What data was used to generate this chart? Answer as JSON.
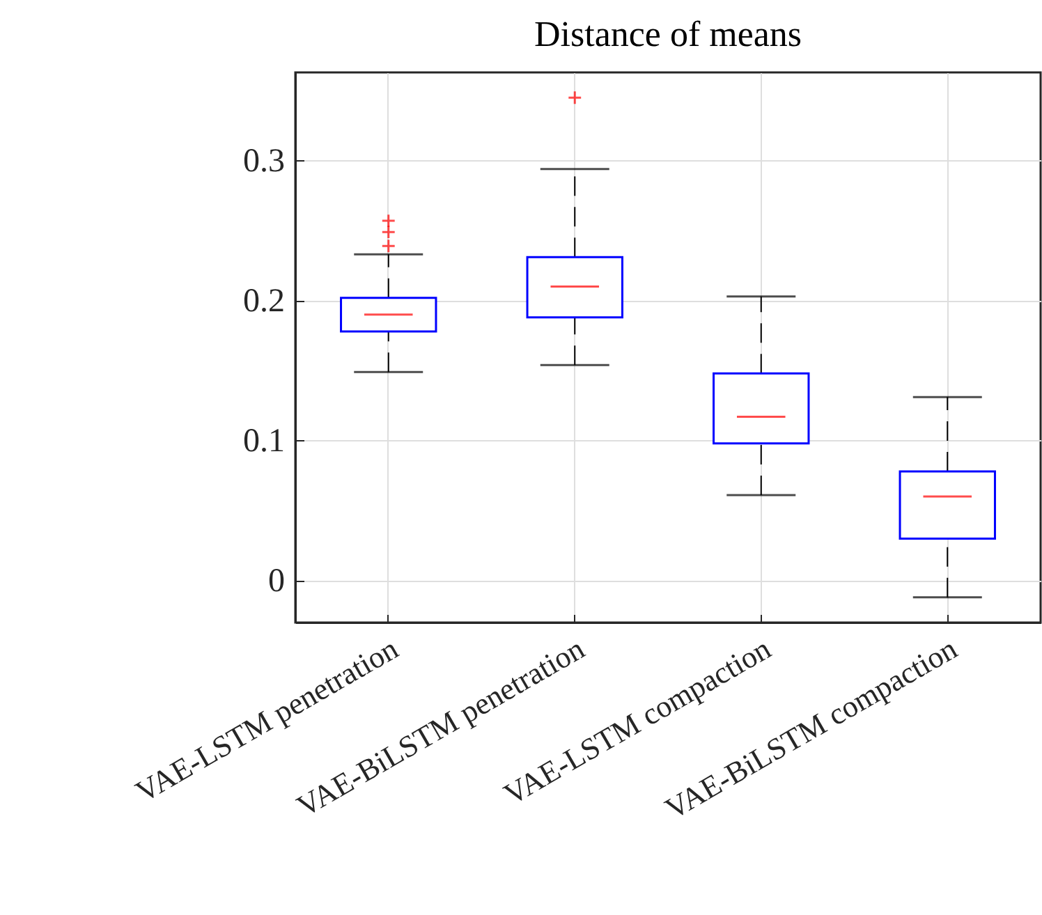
{
  "chart_data": {
    "type": "box",
    "title": "Distance of means",
    "categories": [
      "VAE-LSTM penetration",
      "VAE-BiLSTM penetration",
      "VAE-LSTM compaction",
      "VAE-BiLSTM compaction"
    ],
    "boxes": [
      {
        "low": 0.149,
        "q1": 0.178,
        "median": 0.19,
        "q3": 0.202,
        "high": 0.233,
        "outliers": [
          0.239,
          0.249,
          0.257
        ]
      },
      {
        "low": 0.154,
        "q1": 0.188,
        "median": 0.21,
        "q3": 0.231,
        "high": 0.294,
        "outliers": [
          0.345
        ]
      },
      {
        "low": 0.061,
        "q1": 0.098,
        "median": 0.117,
        "q3": 0.148,
        "high": 0.203
      },
      {
        "low": -0.012,
        "q1": 0.03,
        "median": 0.06,
        "q3": 0.078,
        "high": 0.131
      }
    ],
    "ylim": [
      -0.03,
      0.363
    ],
    "yticks": [
      0,
      0.1,
      0.2,
      0.3
    ],
    "grid": true
  }
}
